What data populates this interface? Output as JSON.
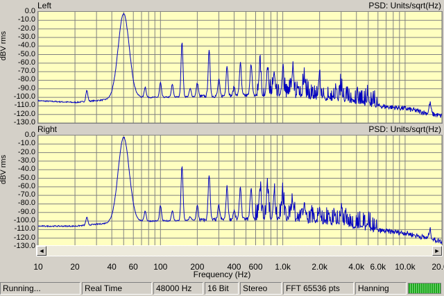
{
  "panels": [
    {
      "id": "left",
      "title": "Left",
      "units": "PSD: Units/sqrt(Hz)"
    },
    {
      "id": "right",
      "title": "Right",
      "units": "PSD: Units/sqrt(Hz)"
    }
  ],
  "y_axis": {
    "label": "dBV rms",
    "ticks": [
      "0.0",
      "-10.0",
      "-20.0",
      "-30.0",
      "-40.0",
      "-50.0",
      "-60.0",
      "-70.0",
      "-80.0",
      "-90.0",
      "-100.0",
      "-110.0",
      "-120.0",
      "-130.0"
    ],
    "range": [
      -130,
      0
    ]
  },
  "x_axis": {
    "label": "Frequency (Hz)",
    "scale": "log",
    "range": [
      10,
      20000
    ],
    "ticks": [
      {
        "label": "10",
        "value": 10
      },
      {
        "label": "20",
        "value": 20
      },
      {
        "label": "40",
        "value": 40
      },
      {
        "label": "60",
        "value": 60
      },
      {
        "label": "100",
        "value": 100
      },
      {
        "label": "200",
        "value": 200
      },
      {
        "label": "400",
        "value": 400
      },
      {
        "label": "600",
        "value": 600
      },
      {
        "label": "1.0k",
        "value": 1000
      },
      {
        "label": "2.0k",
        "value": 2000
      },
      {
        "label": "4.0k",
        "value": 4000
      },
      {
        "label": "6.0k",
        "value": 6000
      },
      {
        "label": "10.0k",
        "value": 10000
      },
      {
        "label": "20.0k",
        "value": 20000
      }
    ]
  },
  "scrollbar": {
    "left_arrow": "◄",
    "right_arrow": "►"
  },
  "status_bar": {
    "state": "Running...",
    "mode": "Real Time",
    "sample_rate": "48000 Hz",
    "bits": "16 Bit",
    "channels": "Stereo",
    "fft": "FFT 65536 pts",
    "window": "Hanning"
  },
  "colors": {
    "plot_bg": "#ffffc0",
    "trace": "#0000c0",
    "grid": "#808080"
  },
  "chart_data": [
    {
      "type": "line",
      "title": "Left",
      "xlabel": "Frequency (Hz)",
      "ylabel": "dBV rms",
      "xscale": "log",
      "xlim": [
        10,
        20000
      ],
      "ylim": [
        -130,
        0
      ],
      "grid": true,
      "series": [
        {
          "peaks": [
            {
              "x": 25,
              "y": -92
            },
            {
              "x": 50,
              "y": -2
            },
            {
              "x": 75,
              "y": -88
            },
            {
              "x": 100,
              "y": -83
            },
            {
              "x": 125,
              "y": -85
            },
            {
              "x": 150,
              "y": -36
            },
            {
              "x": 175,
              "y": -90
            },
            {
              "x": 200,
              "y": -83
            },
            {
              "x": 250,
              "y": -46
            },
            {
              "x": 300,
              "y": -80
            },
            {
              "x": 350,
              "y": -63
            },
            {
              "x": 400,
              "y": -88
            },
            {
              "x": 450,
              "y": -60
            },
            {
              "x": 550,
              "y": -60
            },
            {
              "x": 650,
              "y": -62
            },
            {
              "x": 750,
              "y": -65
            },
            {
              "x": 850,
              "y": -70
            },
            {
              "x": 1000,
              "y": -72
            },
            {
              "x": 1200,
              "y": -75
            },
            {
              "x": 1500,
              "y": -80
            },
            {
              "x": 2000,
              "y": -85
            },
            {
              "x": 3000,
              "y": -90
            },
            {
              "x": 5000,
              "y": -100
            },
            {
              "x": 16000,
              "y": -107
            }
          ],
          "floor": [
            {
              "x": 10,
              "y": -104
            },
            {
              "x": 20,
              "y": -106
            },
            {
              "x": 60,
              "y": -100
            },
            {
              "x": 100,
              "y": -100
            },
            {
              "x": 400,
              "y": -98
            },
            {
              "x": 1000,
              "y": -97
            },
            {
              "x": 3000,
              "y": -102
            },
            {
              "x": 6000,
              "y": -110
            },
            {
              "x": 10000,
              "y": -113
            },
            {
              "x": 20000,
              "y": -122
            }
          ]
        }
      ]
    },
    {
      "type": "line",
      "title": "Right",
      "xlabel": "Frequency (Hz)",
      "ylabel": "dBV rms",
      "xscale": "log",
      "xlim": [
        10,
        20000
      ],
      "ylim": [
        -130,
        0
      ],
      "grid": true,
      "series": [
        {
          "peaks": [
            {
              "x": 25,
              "y": -96
            },
            {
              "x": 50,
              "y": -2
            },
            {
              "x": 75,
              "y": -88
            },
            {
              "x": 100,
              "y": -82
            },
            {
              "x": 125,
              "y": -88
            },
            {
              "x": 150,
              "y": -36
            },
            {
              "x": 175,
              "y": -95
            },
            {
              "x": 200,
              "y": -82
            },
            {
              "x": 250,
              "y": -45
            },
            {
              "x": 300,
              "y": -82
            },
            {
              "x": 350,
              "y": -60
            },
            {
              "x": 400,
              "y": -88
            },
            {
              "x": 450,
              "y": -60
            },
            {
              "x": 550,
              "y": -62
            },
            {
              "x": 650,
              "y": -63
            },
            {
              "x": 750,
              "y": -65
            },
            {
              "x": 850,
              "y": -68
            },
            {
              "x": 1000,
              "y": -72
            },
            {
              "x": 1200,
              "y": -76
            },
            {
              "x": 1500,
              "y": -80
            },
            {
              "x": 2000,
              "y": -86
            },
            {
              "x": 3000,
              "y": -90
            },
            {
              "x": 5000,
              "y": -101
            },
            {
              "x": 16000,
              "y": -110
            }
          ],
          "floor": [
            {
              "x": 10,
              "y": -106
            },
            {
              "x": 20,
              "y": -106
            },
            {
              "x": 60,
              "y": -100
            },
            {
              "x": 100,
              "y": -100
            },
            {
              "x": 400,
              "y": -98
            },
            {
              "x": 1000,
              "y": -97
            },
            {
              "x": 3000,
              "y": -103
            },
            {
              "x": 6000,
              "y": -111
            },
            {
              "x": 10000,
              "y": -114
            },
            {
              "x": 20000,
              "y": -124
            }
          ]
        }
      ]
    }
  ]
}
